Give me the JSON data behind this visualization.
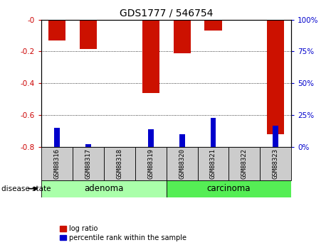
{
  "title": "GDS1777 / 546754",
  "samples": [
    "GSM88316",
    "GSM88317",
    "GSM88318",
    "GSM88319",
    "GSM88320",
    "GSM88321",
    "GSM88322",
    "GSM88323"
  ],
  "log_ratios": [
    -0.13,
    -0.185,
    0.0,
    -0.46,
    -0.21,
    -0.07,
    0.0,
    -0.72
  ],
  "percentile_ranks": [
    15,
    2,
    0,
    14,
    10,
    23,
    0,
    17
  ],
  "groups": [
    {
      "label": "adenoma",
      "indices": [
        0,
        1,
        2,
        3
      ],
      "color": "#aaffaa"
    },
    {
      "label": "carcinoma",
      "indices": [
        4,
        5,
        6,
        7
      ],
      "color": "#55ee55"
    }
  ],
  "disease_state_label": "disease state",
  "ylim_left": [
    -0.8,
    0.0
  ],
  "ylim_right": [
    0,
    100
  ],
  "yticks_left": [
    -0.8,
    -0.6,
    -0.4,
    -0.2,
    0.0
  ],
  "yticks_right": [
    0,
    25,
    50,
    75,
    100
  ],
  "bar_color_red": "#cc1100",
  "bar_color_blue": "#0000cc",
  "tick_label_color_left": "#cc0000",
  "tick_label_color_right": "#0000cc",
  "grid_color": "#000000",
  "bg_color": "#ffffff",
  "legend_red_label": "log ratio",
  "legend_blue_label": "percentile rank within the sample"
}
